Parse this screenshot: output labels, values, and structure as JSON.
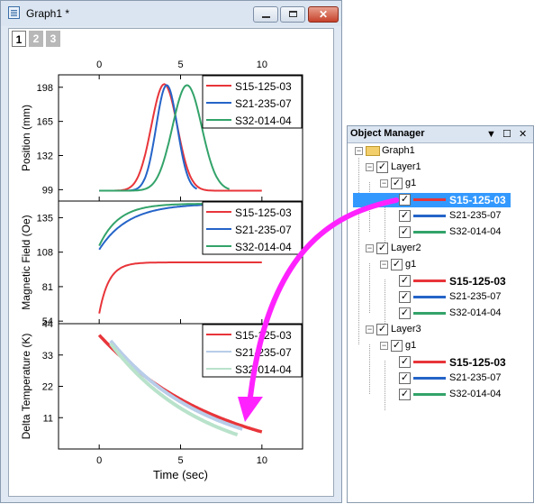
{
  "window": {
    "title": "Graph1 *",
    "close_glyph": "✕",
    "layer_tabs": [
      "1",
      "2",
      "3"
    ]
  },
  "object_manager": {
    "title": "Object Manager",
    "root": "Graph1",
    "layers": [
      {
        "name": "Layer1",
        "group": "g1"
      },
      {
        "name": "Layer2",
        "group": "g1"
      },
      {
        "name": "Layer3",
        "group": "g1"
      }
    ],
    "series": [
      "S15-125-03",
      "S21-235-07",
      "S32-014-04"
    ],
    "checked_glyph": "✓",
    "collapse_glyph": "−",
    "header_icons": [
      "▼",
      "☐",
      "✕"
    ]
  },
  "colors": {
    "s15": "#e8353a",
    "s21": "#2564c8",
    "s32": "#33a36a",
    "arrow": "#ff22ff",
    "selection": "#3399ff"
  },
  "chart_data": [
    {
      "type": "line",
      "layer": 1,
      "ylabel": "Position (mm)",
      "xlim": [
        -2.5,
        12.5
      ],
      "ylim": [
        88,
        210
      ],
      "top_ticks": [
        "0",
        "5",
        "10"
      ],
      "yticks": [
        "99",
        "132",
        "165",
        "198"
      ],
      "legend": [
        "S15-125-03",
        "S21-235-07",
        "S32-014-04"
      ],
      "series": [
        {
          "name": "S15-125-03",
          "color": "#e8353a",
          "baseline": 98,
          "peak": 201,
          "center": 4.0,
          "width": 0.8,
          "x": [
            0,
            10
          ]
        },
        {
          "name": "S21-235-07",
          "color": "#2564c8",
          "baseline": 98,
          "peak": 200,
          "center": 4.15,
          "width": 0.65,
          "x": [
            0,
            6
          ]
        },
        {
          "name": "S32-014-04",
          "color": "#33a36a",
          "baseline": 98,
          "peak": 200,
          "center": 5.4,
          "width": 0.9,
          "x": [
            0,
            8
          ]
        }
      ]
    },
    {
      "type": "line",
      "layer": 2,
      "ylabel": "Magnetic Field (Oe)",
      "xlim": [
        -2.5,
        12.5
      ],
      "ylim": [
        52,
        148
      ],
      "yticks": [
        "54",
        "81",
        "108",
        "135"
      ],
      "legend": [
        "S15-125-03",
        "S21-235-07",
        "S32-014-04"
      ],
      "series": [
        {
          "name": "S15-125-03",
          "color": "#e8353a",
          "start": 60,
          "end": 100,
          "tau": 0.6,
          "x": [
            0,
            10
          ]
        },
        {
          "name": "S21-235-07",
          "color": "#2564c8",
          "start": 110,
          "end": 146,
          "tau": 1.8,
          "x": [
            0,
            10
          ]
        },
        {
          "name": "S32-014-04",
          "color": "#33a36a",
          "start": 113,
          "end": 146,
          "tau": 1.2,
          "x": [
            0,
            10
          ]
        }
      ]
    },
    {
      "type": "line",
      "layer": 3,
      "ylabel": "Delta Temperature (K)",
      "xlabel": "Time (sec)",
      "xlim": [
        -2.5,
        12.5
      ],
      "ylim": [
        0,
        44
      ],
      "bottom_ticks": [
        "0",
        "5",
        "10"
      ],
      "yticks": [
        "11",
        "22",
        "33",
        "44"
      ],
      "legend": [
        "S15-125-03",
        "S21-235-07",
        "S32-014-04"
      ],
      "series": [
        {
          "name": "S15-125-03",
          "color": "#e8353a",
          "start": 40,
          "end": 6,
          "x": [
            0,
            10
          ]
        },
        {
          "name": "S21-235-07",
          "color": "#b8cde9",
          "start": 38,
          "end": 7,
          "x": [
            0.7,
            8.8
          ]
        },
        {
          "name": "S32-014-04",
          "color": "#b9e2cb",
          "start": 37,
          "end": 5,
          "x": [
            0.7,
            8.5
          ]
        }
      ]
    }
  ]
}
